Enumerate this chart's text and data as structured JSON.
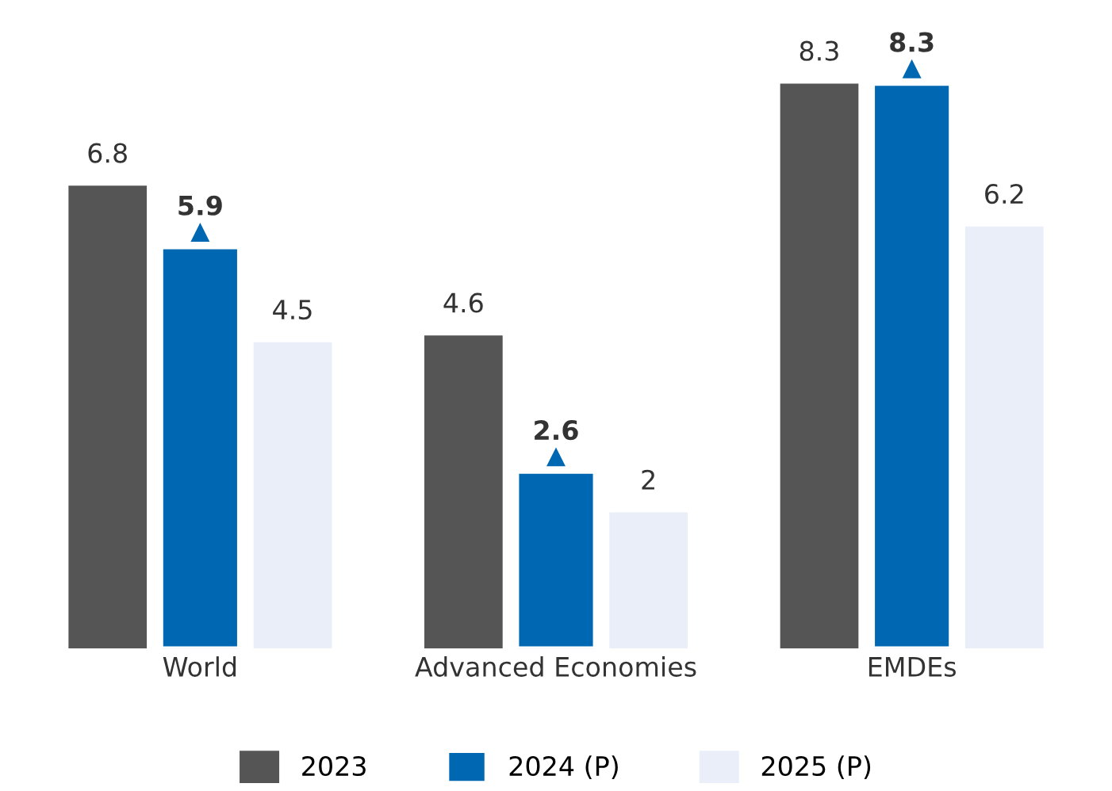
{
  "chart_data": {
    "type": "bar",
    "categories": [
      "World",
      "Advanced Economies",
      "EMDEs"
    ],
    "series": [
      {
        "name": "2023",
        "color": "#555555",
        "values": [
          6.8,
          4.6,
          8.3
        ]
      },
      {
        "name": "2024 (P)",
        "color": "#0068b3",
        "values": [
          5.9,
          2.6,
          8.3
        ]
      },
      {
        "name": "2025 (P)",
        "color": "#e9eef9",
        "values": [
          4.5,
          2,
          6.2
        ]
      }
    ],
    "data_labels": true,
    "grid": false,
    "legend": "bottom",
    "tick_labels": "x"
  }
}
